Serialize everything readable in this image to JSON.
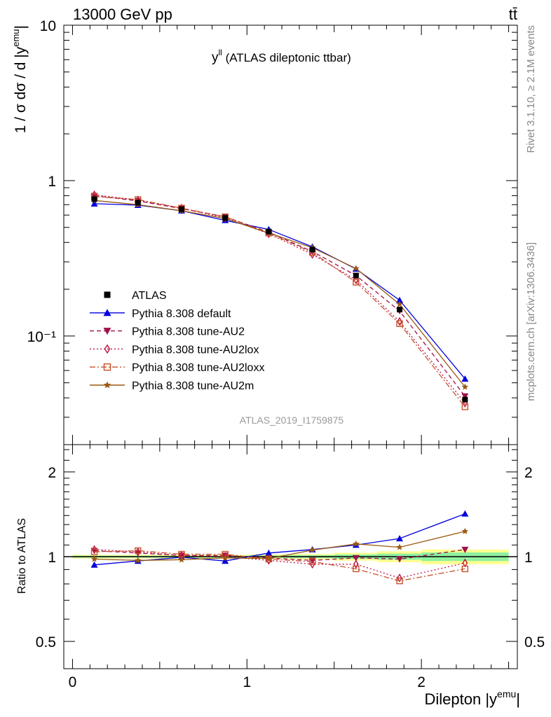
{
  "header": {
    "energy_label": "13000 GeV pp",
    "process_label": "tt̄"
  },
  "side_labels": {
    "rivet": "Rivet 3.1.10, ≥ 2.1M events",
    "mcplots": "mcplots.cern.ch [arXiv:1306.3436]"
  },
  "chart_data": [
    {
      "type": "line",
      "panel": "main",
      "title": "y^ll (ATLAS dileptonic ttbar)",
      "title_main": "y",
      "title_sup": "ll",
      "title_rest": " (ATLAS dileptonic ttbar)",
      "analysis_label": "ATLAS_2019_I1759875",
      "ylabel": "1 / σ dσ / d |y^emu|",
      "ylabel_main": "1 / σ dσ / d |y",
      "ylabel_sup": "emu",
      "ylabel_end": "|",
      "yscale": "log",
      "ylim": [
        0.02,
        10
      ],
      "xlim": [
        -0.05,
        2.55
      ],
      "y_tick_labels": [
        "10",
        "1",
        "10⁻¹"
      ],
      "y_tick_values": [
        10,
        1,
        0.1
      ],
      "legend_position": "center-left",
      "x": [
        0.125,
        0.375,
        0.625,
        0.875,
        1.125,
        1.375,
        1.625,
        1.875,
        2.25
      ],
      "series": [
        {
          "name": "ATLAS",
          "color": "#000000",
          "marker": "square",
          "line": "none",
          "values": [
            0.76,
            0.72,
            0.655,
            0.575,
            0.47,
            0.36,
            0.245,
            0.148,
            0.039
          ]
        },
        {
          "name": "Pythia 8.308 default",
          "color": "#0000dd",
          "marker": "triangle-up",
          "line": "solid",
          "values": [
            0.71,
            0.695,
            0.64,
            0.555,
            0.485,
            0.375,
            0.27,
            0.17,
            0.053
          ]
        },
        {
          "name": "Pythia 8.308 tune-AU2",
          "color": "#a0104a",
          "marker": "triangle-down",
          "line": "dashed",
          "values": [
            0.8,
            0.74,
            0.66,
            0.585,
            0.465,
            0.35,
            0.245,
            0.145,
            0.041
          ]
        },
        {
          "name": "Pythia 8.308 tune-AU2lox",
          "color": "#c01040",
          "marker": "diamond-open",
          "line": "dotted",
          "values": [
            0.81,
            0.75,
            0.665,
            0.575,
            0.455,
            0.335,
            0.23,
            0.124,
            0.037
          ]
        },
        {
          "name": "Pythia 8.308 tune-AU2loxx",
          "color": "#c8502a",
          "marker": "square-open",
          "line": "dashdot",
          "values": [
            0.79,
            0.755,
            0.665,
            0.585,
            0.46,
            0.345,
            0.222,
            0.12,
            0.035
          ]
        },
        {
          "name": "Pythia 8.308 tune-AU2m",
          "color": "#9a5a12",
          "marker": "star",
          "line": "solid",
          "values": [
            0.745,
            0.7,
            0.64,
            0.57,
            0.46,
            0.37,
            0.272,
            0.16,
            0.047
          ]
        }
      ]
    },
    {
      "type": "line",
      "panel": "ratio",
      "ylabel": "Ratio to ATLAS",
      "xlabel": "Dilepton |y^emu|",
      "xlabel_main": "Dilepton |y",
      "xlabel_sup": "emu",
      "xlabel_end": "|",
      "yscale": "log",
      "ylim": [
        0.4,
        2.5
      ],
      "xlim": [
        -0.05,
        2.55
      ],
      "x_tick_labels": [
        "0",
        "1",
        "2"
      ],
      "x_tick_values": [
        0,
        1,
        2
      ],
      "y_tick_labels": [
        "2",
        "1",
        "0.5"
      ],
      "y_tick_values": [
        2,
        1,
        0.5
      ],
      "x": [
        0.125,
        0.375,
        0.625,
        0.875,
        1.125,
        1.375,
        1.625,
        1.875,
        2.25
      ],
      "bands": {
        "bin_edges": [
          0,
          0.25,
          0.5,
          0.75,
          1.0,
          1.25,
          1.5,
          1.75,
          2.0,
          2.5
        ],
        "inner": [
          0.008,
          0.008,
          0.008,
          0.008,
          0.01,
          0.012,
          0.018,
          0.025,
          0.035
        ],
        "outer": [
          0.015,
          0.015,
          0.015,
          0.015,
          0.018,
          0.022,
          0.032,
          0.045,
          0.06
        ]
      },
      "series": [
        {
          "name": "Pythia 8.308 default",
          "color": "#0000dd",
          "marker": "triangle-up",
          "line": "solid",
          "values": [
            0.935,
            0.965,
            0.995,
            0.965,
            1.03,
            1.06,
            1.1,
            1.16,
            1.42
          ]
        },
        {
          "name": "Pythia 8.308 tune-AU2",
          "color": "#a0104a",
          "marker": "triangle-down",
          "line": "dashed",
          "values": [
            1.05,
            1.03,
            1.01,
            1.01,
            0.99,
            0.97,
            0.99,
            0.98,
            1.06
          ]
        },
        {
          "name": "Pythia 8.308 tune-AU2lox",
          "color": "#c01040",
          "marker": "diamond-open",
          "line": "dotted",
          "values": [
            1.06,
            1.04,
            1.01,
            1.0,
            0.97,
            0.94,
            0.94,
            0.84,
            0.95
          ]
        },
        {
          "name": "Pythia 8.308 tune-AU2loxx",
          "color": "#c8502a",
          "marker": "square-open",
          "line": "dashdot",
          "values": [
            1.04,
            1.05,
            1.02,
            1.02,
            0.98,
            0.96,
            0.905,
            0.82,
            0.905
          ]
        },
        {
          "name": "Pythia 8.308 tune-AU2m",
          "color": "#9a5a12",
          "marker": "star",
          "line": "solid",
          "values": [
            0.98,
            0.97,
            0.975,
            0.99,
            0.985,
            1.055,
            1.11,
            1.08,
            1.23
          ]
        }
      ]
    }
  ]
}
